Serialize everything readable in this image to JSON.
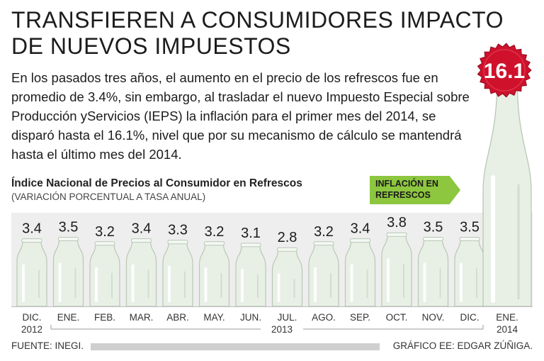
{
  "title": "TRANSFIEREN A CONSUMIDORES IMPACTO DE NUEVOS IMPUESTOS",
  "body": "En los pasados tres años, el aumento en el precio de los refrescos fue en promedio de 3.4%, sin embargo, al trasladar el nuevo Impuesto Especial sobre Producción yServicios (IEPS) la inflación para el primer mes del 2014, se disparó hasta el 16.1%, nivel que por su mecanismo de cálculo se mantendrá hasta el último mes del 2014.",
  "badge": "INFLACIÓN EN REFRESCOS",
  "footer": {
    "source": "FUENTE: INEGI.",
    "credit": "GRÁFICO EE: EDGAR ZÚÑIGA."
  },
  "colors": {
    "accent": "#8dc63f",
    "bottle": "#e8f0e6",
    "cap": "#d0112b"
  },
  "chart_data": {
    "type": "bar",
    "title": "Índice Nacional de Precios al Consumidor en Refrescos",
    "subtitle": "(VARIACIÓN PORCENTUAL A TASA ANUAL)",
    "categories": [
      "DIC.",
      "ENE.",
      "FEB.",
      "MAR.",
      "ABR.",
      "MAY.",
      "JUN.",
      "JUL.",
      "AGO.",
      "SEP.",
      "OCT.",
      "NOV.",
      "DIC.",
      "ENE."
    ],
    "year_labels": [
      "2012",
      "2013",
      "2014"
    ],
    "values": [
      3.4,
      3.5,
      3.2,
      3.4,
      3.3,
      3.2,
      3.1,
      2.8,
      3.2,
      3.4,
      3.8,
      3.5,
      3.5,
      16.1
    ],
    "value_labels": [
      "3.4",
      "3.5",
      "3.2",
      "3.4",
      "3.3",
      "3.2",
      "3.1",
      "2.8",
      "3.2",
      "3.4",
      "3.8",
      "3.5",
      "3.5",
      "16.1"
    ],
    "xlabel": "",
    "ylabel": "",
    "units": "%",
    "grid": false
  }
}
